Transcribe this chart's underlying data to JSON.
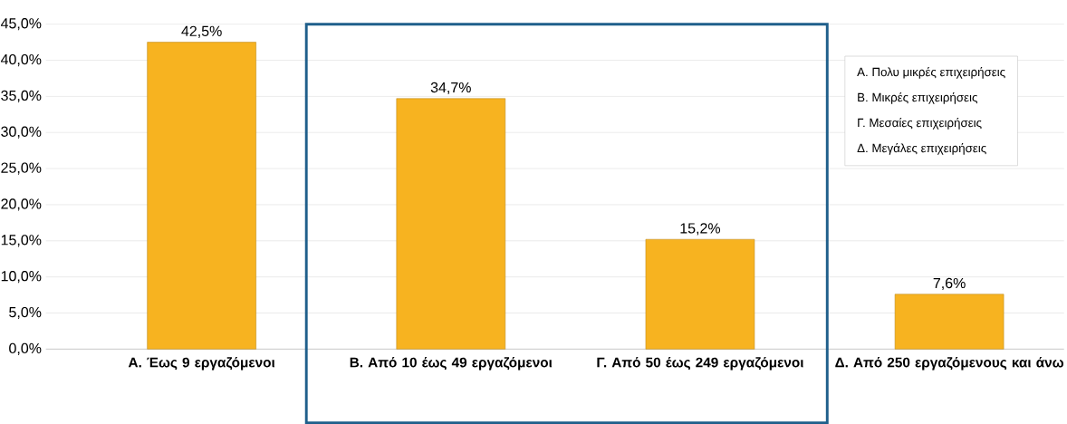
{
  "chart_data": {
    "type": "bar",
    "categories": [
      "Α. Έως 9 εργαζόμενοι",
      "Β. Από 10 έως 49 εργαζόμενοι",
      "Γ. Από 50 έως 249 εργαζόμενοι",
      "Δ. Από 250 εργαζόμενους και άνω"
    ],
    "values": [
      42.5,
      34.7,
      15.2,
      7.6
    ],
    "value_labels": [
      "42,5%",
      "34,7%",
      "15,2%",
      "7,6%"
    ],
    "color": "#f7b320",
    "ylim": [
      0,
      45
    ],
    "yticks": [
      {
        "value": 0,
        "label": "0,0%"
      },
      {
        "value": 5,
        "label": "5,0%"
      },
      {
        "value": 10,
        "label": "10,0%"
      },
      {
        "value": 15,
        "label": "15,0%"
      },
      {
        "value": 20,
        "label": "20,0%"
      },
      {
        "value": 25,
        "label": "25,0%"
      },
      {
        "value": 30,
        "label": "30,0%"
      },
      {
        "value": 35,
        "label": "35,0%"
      },
      {
        "value": 40,
        "label": "40,0%"
      },
      {
        "value": 45,
        "label": "45,0%"
      }
    ],
    "grid": "y",
    "annotations": [
      "Α. Πολυ μικρές επιχειρήσεις",
      "Β. Μικρές επιχειρήσεις",
      "Γ. Μεσαίες επιχειρήσεις",
      "Δ. Μεγάλες επιχειρήσεις"
    ]
  }
}
